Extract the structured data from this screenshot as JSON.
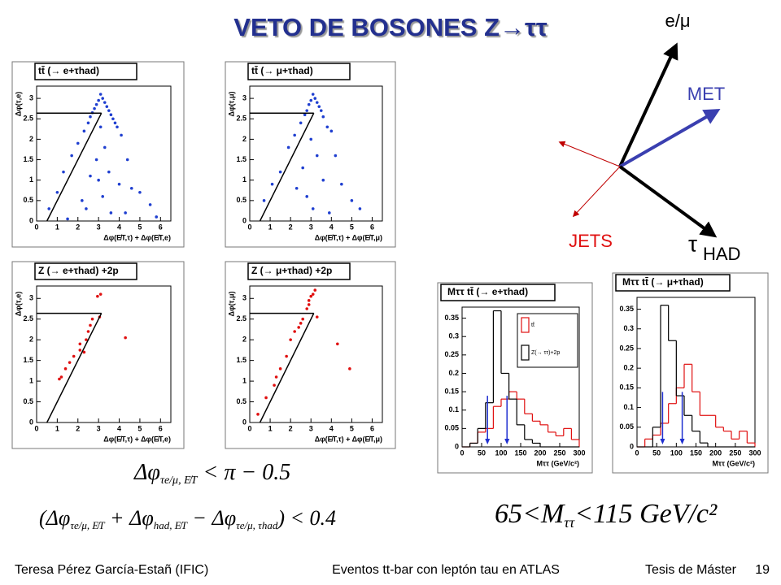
{
  "title": "VETO DE BOSONES Z→ττ",
  "diagram": {
    "lepton": "e/μ",
    "met": "MET",
    "jets": "JETS",
    "tau": "τ",
    "tau_sub": "HAD"
  },
  "chart_data": [
    {
      "type": "scatter",
      "title": "tt̄ (→ e+τhad)",
      "x_label": "Δφ(E̸T,τ) + Δφ(E̸T,e)",
      "y_label": "Δφ(τ,e)",
      "xlim": [
        0,
        6.5
      ],
      "xticks": [
        0,
        1,
        2,
        3,
        4,
        5,
        6
      ],
      "ylim": [
        0,
        3.3
      ],
      "yticks": [
        0,
        0.5,
        1,
        1.5,
        2,
        2.5,
        3
      ],
      "series": [
        {
          "color": "#1f3fd0",
          "x": [
            3.1,
            3.0,
            3.2,
            2.9,
            3.3,
            2.8,
            3.4,
            2.7,
            3.5,
            2.6,
            3.6,
            3.7,
            2.5,
            3.8,
            3.9,
            4.1,
            2.3,
            2.0,
            3.1,
            3.3,
            2.9,
            3.5,
            2.6,
            4.0,
            4.4,
            1.7,
            1.3,
            3.2,
            2.4,
            4.6,
            5.0,
            5.5,
            1.0,
            0.6,
            3.6,
            2.2,
            3.0,
            4.3,
            5.8,
            1.5
          ],
          "values": [
            3.1,
            2.95,
            3.0,
            2.85,
            2.9,
            2.75,
            2.8,
            2.65,
            2.7,
            2.55,
            2.6,
            2.5,
            2.4,
            2.4,
            2.3,
            2.1,
            2.2,
            1.9,
            2.3,
            1.8,
            1.5,
            1.2,
            1.1,
            0.9,
            1.5,
            1.6,
            1.2,
            0.6,
            0.3,
            0.8,
            0.7,
            0.4,
            0.7,
            0.3,
            0.2,
            0.5,
            1.0,
            0.2,
            0.1,
            0.05
          ]
        }
      ],
      "cut_lines": [
        {
          "x": [
            0,
            3.14
          ],
          "values": [
            2.64,
            2.64
          ]
        },
        {
          "x": [
            0.5,
            3.14
          ],
          "values": [
            0,
            2.64
          ]
        }
      ]
    },
    {
      "type": "scatter",
      "title": "tt̄ (→ μ+τhad)",
      "x_label": "Δφ(E̸T,τ) + Δφ(E̸T,μ)",
      "y_label": "Δφ(τ,μ)",
      "xlim": [
        0,
        6.5
      ],
      "xticks": [
        0,
        1,
        2,
        3,
        4,
        5,
        6
      ],
      "ylim": [
        0,
        3.3
      ],
      "yticks": [
        0,
        0.5,
        1,
        1.5,
        2,
        2.5,
        3
      ],
      "series": [
        {
          "color": "#1f3fd0",
          "x": [
            3.1,
            3.0,
            3.2,
            2.9,
            3.3,
            2.8,
            3.4,
            2.7,
            3.5,
            3.6,
            2.5,
            3.8,
            2.2,
            4.0,
            1.9,
            3.0,
            3.3,
            2.6,
            3.6,
            4.2,
            1.5,
            2.8,
            3.1,
            4.5,
            1.1,
            5.0,
            0.7,
            3.9,
            2.3,
            5.4
          ],
          "values": [
            3.1,
            2.95,
            3.0,
            2.85,
            2.9,
            2.7,
            2.8,
            2.6,
            2.7,
            2.55,
            2.4,
            2.3,
            2.1,
            2.2,
            1.8,
            2.0,
            1.6,
            1.3,
            1.0,
            1.6,
            1.2,
            0.6,
            0.3,
            0.9,
            0.9,
            0.5,
            0.5,
            0.2,
            0.8,
            0.3
          ]
        }
      ],
      "cut_lines": [
        {
          "x": [
            0,
            3.14
          ],
          "values": [
            2.64,
            2.64
          ]
        },
        {
          "x": [
            0.5,
            3.14
          ],
          "values": [
            0,
            2.64
          ]
        }
      ]
    },
    {
      "type": "scatter",
      "title": "Z (→ e+τhad) +2p",
      "x_label": "Δφ(E̸T,τ) + Δφ(E̸T,e)",
      "y_label": "Δφ(τ,e)",
      "xlim": [
        0,
        6.5
      ],
      "xticks": [
        0,
        1,
        2,
        3,
        4,
        5,
        6
      ],
      "ylim": [
        0,
        3.3
      ],
      "yticks": [
        0,
        0.5,
        1,
        1.5,
        2,
        2.5,
        3
      ],
      "series": [
        {
          "color": "#e01010",
          "x": [
            2.95,
            3.1,
            3.05,
            2.7,
            2.6,
            2.5,
            2.4,
            2.1,
            2.3,
            1.8,
            1.6,
            1.4,
            1.2,
            1.1,
            2.1,
            4.3
          ],
          "values": [
            3.05,
            3.1,
            2.55,
            2.5,
            2.35,
            2.2,
            2.0,
            1.9,
            1.7,
            1.6,
            1.45,
            1.3,
            1.1,
            1.05,
            1.75,
            2.05
          ]
        }
      ],
      "cut_lines": [
        {
          "x": [
            0,
            3.14
          ],
          "values": [
            2.64,
            2.64
          ]
        },
        {
          "x": [
            0.5,
            3.14
          ],
          "values": [
            0,
            2.64
          ]
        }
      ]
    },
    {
      "type": "scatter",
      "title": "Z (→ μ+τhad) +2p",
      "x_label": "Δφ(E̸T,τ) + Δφ(E̸T,μ)",
      "y_label": "Δφ(τ,μ)",
      "xlim": [
        0,
        6.5
      ],
      "xticks": [
        0,
        1,
        2,
        3,
        4,
        5,
        6
      ],
      "ylim": [
        0,
        3.3
      ],
      "yticks": [
        0,
        0.5,
        1,
        1.5,
        2,
        2.5,
        3
      ],
      "series": [
        {
          "color": "#e01010",
          "x": [
            3.1,
            3.0,
            3.2,
            2.9,
            2.8,
            2.6,
            2.4,
            2.2,
            2.0,
            1.8,
            1.5,
            1.3,
            1.2,
            0.8,
            0.4,
            2.9,
            3.3,
            4.3,
            4.9,
            2.5
          ],
          "values": [
            3.1,
            3.05,
            3.2,
            2.95,
            2.75,
            2.5,
            2.3,
            2.2,
            2.0,
            1.6,
            1.3,
            1.1,
            0.9,
            0.6,
            0.2,
            2.85,
            2.55,
            1.9,
            1.3,
            2.4
          ]
        }
      ],
      "cut_lines": [
        {
          "x": [
            0,
            3.14
          ],
          "values": [
            2.64,
            2.64
          ]
        },
        {
          "x": [
            0.5,
            3.14
          ],
          "values": [
            0,
            2.64
          ]
        }
      ]
    },
    {
      "type": "histogram",
      "title": "Mττ tt̄ (→ e+τhad)",
      "x_label": "Mττ (GeV/c²)",
      "xlim": [
        0,
        300
      ],
      "xticks": [
        0,
        50,
        100,
        150,
        200,
        250,
        300
      ],
      "ylim": [
        0,
        0.38
      ],
      "yticks": [
        0,
        0.05,
        0.1,
        0.15,
        0.2,
        0.25,
        0.3,
        0.35
      ],
      "bins": [
        0,
        20,
        40,
        60,
        80,
        100,
        120,
        140,
        160,
        180,
        200,
        220,
        240,
        260,
        280,
        300
      ],
      "legend": true,
      "series": [
        {
          "name": "tt̄",
          "color": "#e01010",
          "values": [
            0,
            0.01,
            0.04,
            0.05,
            0.11,
            0.13,
            0.15,
            0.13,
            0.09,
            0.07,
            0.06,
            0.04,
            0.03,
            0.05,
            0.02
          ]
        },
        {
          "name": "Z(→ ττ)+2p",
          "color": "#000000",
          "values": [
            0,
            0.01,
            0.05,
            0.12,
            0.37,
            0.2,
            0.13,
            0.06,
            0.02,
            0.01,
            0,
            0,
            0,
            0,
            0
          ]
        }
      ],
      "cuts": [
        65,
        115
      ],
      "cut_color": "#1f2fd0"
    },
    {
      "type": "histogram",
      "title": "Mττ tt̄ (→ μ+τhad)",
      "x_label": "Mττ (GeV/c²)",
      "xlim": [
        0,
        300
      ],
      "xticks": [
        0,
        50,
        100,
        150,
        200,
        250,
        300
      ],
      "ylim": [
        0,
        0.38
      ],
      "yticks": [
        0,
        0.05,
        0.1,
        0.15,
        0.2,
        0.25,
        0.3,
        0.35
      ],
      "bins": [
        0,
        20,
        40,
        60,
        80,
        100,
        120,
        140,
        160,
        180,
        200,
        220,
        240,
        260,
        280,
        300
      ],
      "legend": false,
      "series": [
        {
          "color": "#e01010",
          "values": [
            0,
            0.02,
            0.03,
            0.06,
            0.11,
            0.15,
            0.21,
            0.14,
            0.08,
            0.08,
            0.05,
            0.04,
            0.02,
            0.04,
            0.01
          ]
        },
        {
          "color": "#000000",
          "values": [
            0,
            0,
            0.05,
            0.36,
            0.27,
            0.13,
            0.08,
            0.04,
            0.01,
            0,
            0,
            0,
            0,
            0,
            0
          ]
        }
      ],
      "cuts": [
        65,
        115
      ],
      "cut_color": "#1f2fd0"
    }
  ],
  "formulas": [
    [
      {
        "text": "Δφ"
      },
      {
        "sub": "τe/μ, E̸T"
      },
      {
        "text": " < π − 0.5"
      }
    ],
    [
      {
        "text": "(Δφ"
      },
      {
        "sub": "τe/μ, E̸T"
      },
      {
        "text": " + Δφ"
      },
      {
        "sub": "had, E̸T"
      },
      {
        "text": " − Δφ"
      },
      {
        "sub": "τe/μ, τhad"
      },
      {
        "text": ") < 0.4"
      }
    ],
    [
      {
        "text": "65<M"
      },
      {
        "sub": "ττ"
      },
      {
        "text": "<115  GeV/c²"
      }
    ]
  ],
  "footer": {
    "author": "Teresa Pérez García-Estañ (IFIC)",
    "subject": "Eventos tt-bar con leptón tau en ATLAS",
    "thesis": "Tesis de Máster",
    "page": "19"
  }
}
